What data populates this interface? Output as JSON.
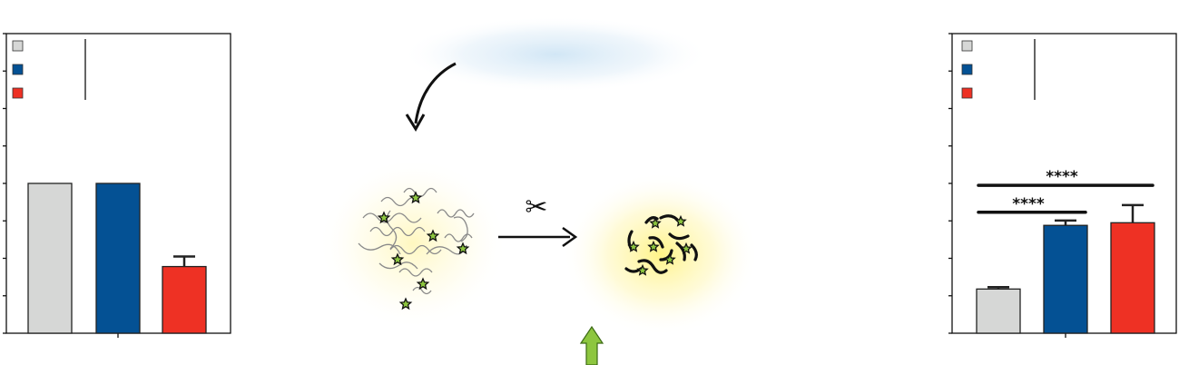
{
  "colors": {
    "gray": "#d6d7d6",
    "blue": "#045194",
    "red": "#ee3124",
    "axis": "#111111",
    "arrow_green": "#8dc63f",
    "star_green": "#8dc63f",
    "glow_yellow": "#fff27a",
    "glow_blue": "#cfe5f5"
  },
  "icons": {
    "scissors": "✂",
    "protein": "protein-ribbon-icon",
    "fragments": "peptide-fragments-icon",
    "curved_arrow": "curved-arrow-icon",
    "process_arrow": "right-arrow-icon",
    "up_arrow": "green-up-arrow-icon"
  },
  "chart_data": [
    {
      "type": "bar",
      "title": "",
      "xlabel": "",
      "ylabel": "",
      "ylim": [
        0,
        8
      ],
      "yticks": [
        0,
        1,
        2,
        3,
        4,
        5,
        6,
        7,
        8
      ],
      "categories": [
        "",
        "",
        ""
      ],
      "series": [
        {
          "values": [
            4.0,
            4.0,
            1.78
          ],
          "errors": [
            0,
            0,
            0.27
          ],
          "colors": [
            "#d6d7d6",
            "#045194",
            "#ee3124"
          ]
        }
      ],
      "legend": {
        "placement": "top-left",
        "entries": 3
      },
      "significance": []
    },
    {
      "type": "bar",
      "title": "",
      "xlabel": "",
      "ylabel": "",
      "ylim": [
        0,
        8
      ],
      "yticks": [
        0,
        1,
        2,
        3,
        4,
        5,
        6,
        7,
        8
      ],
      "categories": [
        "",
        "",
        ""
      ],
      "series": [
        {
          "values": [
            1.18,
            2.88,
            2.95
          ],
          "errors": [
            0.05,
            0.13,
            0.47
          ],
          "colors": [
            "#d6d7d6",
            "#045194",
            "#ee3124"
          ]
        }
      ],
      "legend": {
        "placement": "top-left",
        "entries": 3
      },
      "significance": [
        {
          "label": "****",
          "from": 0,
          "to": 1,
          "level": 3.23
        },
        {
          "label": "****",
          "from": 0,
          "to": 2,
          "level": 3.95
        }
      ]
    }
  ]
}
